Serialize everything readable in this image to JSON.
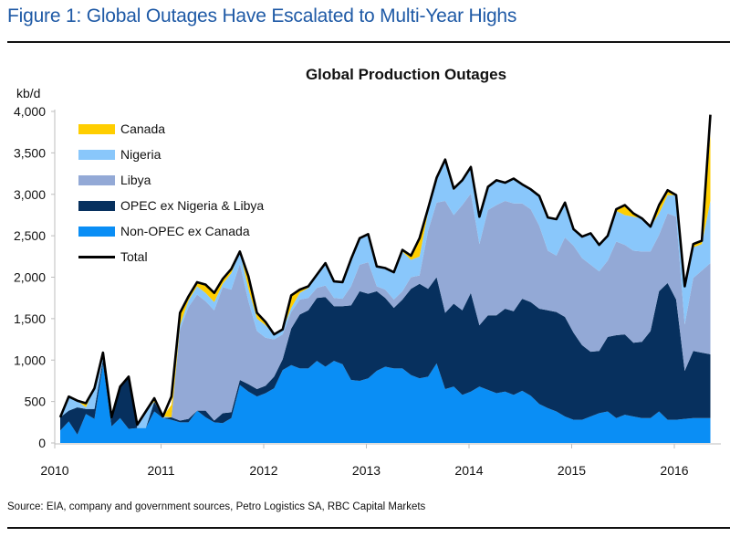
{
  "figure_title": "Figure 1: Global Outages Have Escalated to Multi-Year Highs",
  "source": "Source: EIA, company and government sources, Petro Logistics SA, RBC Capital Markets",
  "chart_data": {
    "type": "area",
    "stacked": true,
    "title": "Global Production Outages",
    "ylabel": "kb/d",
    "xlabel": "",
    "ylim": [
      0,
      4000
    ],
    "yticks": [
      0,
      500,
      1000,
      1500,
      2000,
      2500,
      3000,
      3500,
      4000
    ],
    "ytick_labels": [
      "0",
      "500",
      "1,000",
      "1,500",
      "2,000",
      "2,500",
      "3,000",
      "3,500",
      "4,000"
    ],
    "xticks": [
      "2010",
      "2011",
      "2012",
      "2013",
      "2014",
      "2015",
      "2016"
    ],
    "x_start": "2010-01",
    "x_step": "month",
    "legend_position": "top-left",
    "grid": false,
    "series": [
      {
        "name": "Non-OPEC ex Canada",
        "color": "#0a8ef5",
        "values": [
          150,
          260,
          100,
          350,
          290,
          950,
          200,
          300,
          170,
          180,
          180,
          380,
          300,
          280,
          250,
          250,
          390,
          310,
          250,
          240,
          300,
          700,
          620,
          560,
          600,
          660,
          880,
          940,
          900,
          900,
          990,
          920,
          990,
          950,
          760,
          750,
          780,
          870,
          920,
          900,
          900,
          820,
          780,
          800,
          960,
          650,
          680,
          580,
          620,
          680,
          640,
          600,
          620,
          580,
          630,
          570,
          470,
          420,
          380,
          320,
          280,
          280,
          320,
          360,
          380,
          300,
          340,
          320,
          300,
          300,
          380,
          280,
          280,
          290,
          300,
          300,
          300
        ]
      },
      {
        "name": "OPEC ex Nigeria & Libya",
        "color": "#07305e",
        "values": [
          160,
          130,
          330,
          60,
          120,
          60,
          90,
          380,
          630,
          0,
          0,
          120,
          0,
          30,
          20,
          40,
          0,
          80,
          20,
          120,
          70,
          60,
          90,
          90,
          90,
          140,
          130,
          440,
          650,
          700,
          760,
          840,
          660,
          700,
          900,
          1080,
          1020,
          960,
          830,
          730,
          830,
          1040,
          1140,
          1060,
          1040,
          920,
          1000,
          1020,
          1190,
          740,
          900,
          940,
          1000,
          1010,
          1110,
          1130,
          1150,
          1180,
          1200,
          1200,
          1050,
          900,
          780,
          750,
          900,
          1000,
          970,
          890,
          920,
          1050,
          1450,
          1650,
          1450,
          580,
          810,
          790,
          770
        ]
      },
      {
        "name": "Libya",
        "color": "#93a9d6",
        "values": [
          0,
          0,
          0,
          0,
          0,
          0,
          0,
          0,
          0,
          0,
          0,
          0,
          0,
          0,
          1100,
          1350,
          1400,
          1320,
          1330,
          1520,
          1480,
          1400,
          1000,
          700,
          580,
          450,
          300,
          200,
          180,
          150,
          120,
          140,
          100,
          90,
          230,
          320,
          380,
          60,
          100,
          100,
          100,
          140,
          100,
          700,
          900,
          1350,
          1070,
          1270,
          1200,
          980,
          1270,
          1330,
          1300,
          1300,
          1150,
          1120,
          1000,
          720,
          680,
          960,
          1050,
          1050,
          1050,
          960,
          920,
          1130,
          1080,
          1110,
          1090,
          960,
          680,
          840,
          1000,
          560,
          880,
          990,
          1100
        ]
      },
      {
        "name": "Nigeria",
        "color": "#89c7fb",
        "values": [
          0,
          170,
          80,
          20,
          250,
          80,
          0,
          0,
          0,
          40,
          200,
          0,
          20,
          0,
          50,
          80,
          100,
          100,
          100,
          40,
          200,
          150,
          150,
          150,
          150,
          60,
          60,
          50,
          80,
          120,
          140,
          260,
          200,
          200,
          330,
          320,
          340,
          240,
          260,
          330,
          480,
          210,
          230,
          230,
          300,
          500,
          300,
          300,
          320,
          330,
          280,
          300,
          220,
          300,
          230,
          240,
          360,
          400,
          440,
          420,
          200,
          260,
          380,
          320,
          300,
          370,
          360,
          410,
          400,
          300,
          260,
          220,
          260,
          480,
          370,
          320,
          750
        ]
      },
      {
        "name": "Canada",
        "color": "#ffce00",
        "values": [
          0,
          0,
          0,
          50,
          0,
          0,
          20,
          0,
          0,
          0,
          0,
          40,
          0,
          150,
          150,
          50,
          50,
          100,
          110,
          50,
          50,
          0,
          150,
          70,
          40,
          0,
          0,
          150,
          40,
          20,
          20,
          10,
          0,
          0,
          0,
          0,
          0,
          0,
          0,
          0,
          20,
          50,
          220,
          40,
          0,
          0,
          20,
          0,
          0,
          0,
          0,
          0,
          0,
          0,
          0,
          0,
          0,
          0,
          0,
          0,
          0,
          0,
          0,
          0,
          0,
          20,
          120,
          40,
          0,
          0,
          100,
          60,
          0,
          0,
          40,
          40,
          800
        ]
      }
    ],
    "total": {
      "name": "Total",
      "color": "#000000",
      "values": [
        310,
        560,
        510,
        480,
        660,
        1090,
        310,
        680,
        800,
        220,
        380,
        540,
        320,
        560,
        1570,
        1770,
        1940,
        1910,
        1810,
        1980,
        2100,
        2310,
        2010,
        1570,
        1460,
        1310,
        1370,
        1780,
        1850,
        1890,
        2030,
        2170,
        1950,
        1940,
        2220,
        2470,
        2520,
        2130,
        2110,
        2060,
        2330,
        2260,
        2470,
        2830,
        3200,
        3420,
        3070,
        3170,
        3330,
        2730,
        3090,
        3170,
        3140,
        3190,
        3120,
        3060,
        2980,
        2720,
        2700,
        2900,
        2580,
        2490,
        2530,
        2390,
        2500,
        2820,
        2870,
        2770,
        2710,
        2610,
        2870,
        3050,
        2990,
        1890,
        2400,
        2440,
        3960
      ]
    },
    "legend": [
      "Canada",
      "Nigeria",
      "Libya",
      "OPEC ex Nigeria & Libya",
      "Non-OPEC ex Canada",
      "Total"
    ]
  }
}
